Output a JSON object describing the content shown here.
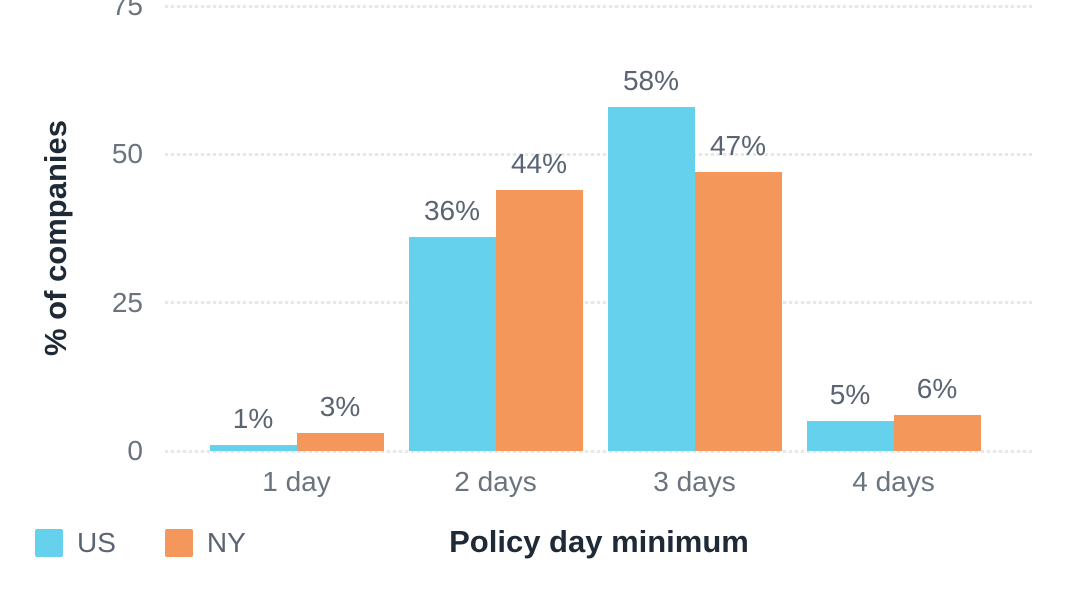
{
  "colors": {
    "background": "#FFFFFF",
    "axis_title_text": "#1F2A37",
    "tick_text": "#6A737E",
    "data_label_text": "#5A6472",
    "gridline": "#E7E7E7",
    "series_us": "#66D1ED",
    "series_ny": "#F3985A"
  },
  "chart_data": {
    "type": "bar",
    "title": "",
    "xlabel": "Policy day minimum",
    "ylabel": "% of companies",
    "categories": [
      "1 day",
      "2 days",
      "3 days",
      "4 days"
    ],
    "series": [
      {
        "name": "US",
        "color": "#66D1ED",
        "values": [
          1,
          36,
          58,
          5
        ],
        "labels": [
          "1%",
          "36%",
          "58%",
          "5%"
        ]
      },
      {
        "name": "NY",
        "color": "#F3985A",
        "values": [
          3,
          44,
          47,
          6
        ],
        "labels": [
          "3%",
          "44%",
          "47%",
          "6%"
        ]
      }
    ],
    "y_ticks": [
      0,
      25,
      50,
      75
    ],
    "ylim": [
      0,
      75
    ],
    "grid": true,
    "legend_position": "bottom-left",
    "legend": [
      {
        "label": "US",
        "color": "#66D1ED"
      },
      {
        "label": "NY",
        "color": "#F3985A"
      }
    ]
  }
}
